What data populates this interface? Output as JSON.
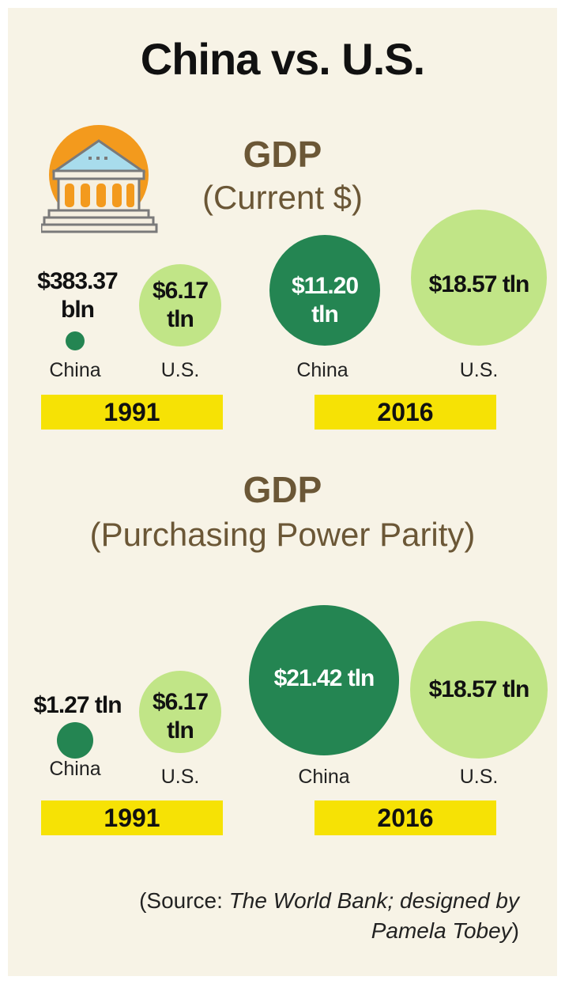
{
  "title": "China vs. U.S.",
  "colors": {
    "background": "#f7f3e6",
    "china": "#248552",
    "us": "#c1e587",
    "year_bar": "#f6e205",
    "heading": "#6b5736"
  },
  "icons": {
    "building": "bank-building-icon"
  },
  "chart_data": [
    {
      "type": "bubble",
      "title": "GDP",
      "subtitle": "(Current $)",
      "groups": [
        {
          "year": "1991",
          "items": [
            {
              "country": "China",
              "label": "$383.37 bln",
              "value_usd_trillion": 0.38337
            },
            {
              "country": "U.S.",
              "label": "$6.17 tln",
              "value_usd_trillion": 6.17
            }
          ]
        },
        {
          "year": "2016",
          "items": [
            {
              "country": "China",
              "label": "$11.20 tln",
              "value_usd_trillion": 11.2
            },
            {
              "country": "U.S.",
              "label": "$18.57 tln",
              "value_usd_trillion": 18.57
            }
          ]
        }
      ]
    },
    {
      "type": "bubble",
      "title": "GDP",
      "subtitle": "(Purchasing Power Parity)",
      "groups": [
        {
          "year": "1991",
          "items": [
            {
              "country": "China",
              "label": "$1.27 tln",
              "value_usd_trillion": 1.27
            },
            {
              "country": "U.S.",
              "label": "$6.17 tln",
              "value_usd_trillion": 6.17
            }
          ]
        },
        {
          "year": "2016",
          "items": [
            {
              "country": "China",
              "label": "$21.42 tln",
              "value_usd_trillion": 21.42
            },
            {
              "country": "U.S.",
              "label": "$18.57 tln",
              "value_usd_trillion": 18.57
            }
          ]
        }
      ]
    }
  ],
  "source": {
    "prefix": "(Source: ",
    "italic": "The World Bank; designed by Pamela Tobey",
    "suffix": ")"
  }
}
